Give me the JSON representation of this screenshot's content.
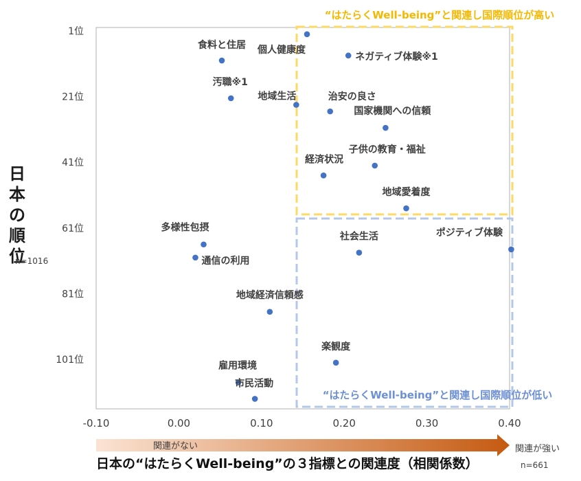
{
  "chart_data": {
    "type": "scatter",
    "x_axis": {
      "min": -0.1,
      "max": 0.4,
      "ticks": [
        "-0.10",
        "0.00",
        "0.10",
        "0.20",
        "0.30",
        "0.40"
      ],
      "title": "日本の“はたらくWell-being”の３指標との関連度（相関係数）",
      "low_label": "関連がない",
      "high_label": "関連が強い",
      "n_label": "n=661"
    },
    "y_axis": {
      "min": 1,
      "max": 115,
      "reversed": true,
      "ticks": [
        "1位",
        "21位",
        "41位",
        "61位",
        "81位",
        "101位"
      ],
      "title": "日本の順位",
      "n_label": "n=1016"
    },
    "points": [
      {
        "label": "食料と住居",
        "x": 0.052,
        "y": 10
      },
      {
        "label": "個人健康度",
        "x": 0.155,
        "y": 2
      },
      {
        "label": "ネガティブ体験※1",
        "x": 0.205,
        "y": 8.5
      },
      {
        "label": "汚職※1",
        "x": 0.063,
        "y": 21.5
      },
      {
        "label": "地域生活",
        "x": 0.142,
        "y": 23.5
      },
      {
        "label": "治安の良さ",
        "x": 0.183,
        "y": 25.5
      },
      {
        "label": "国家機関への信頼",
        "x": 0.25,
        "y": 30.5
      },
      {
        "label": "子供の教育・福祉",
        "x": 0.237,
        "y": 42
      },
      {
        "label": "経済状況",
        "x": 0.175,
        "y": 45
      },
      {
        "label": "地域愛着度",
        "x": 0.275,
        "y": 55
      },
      {
        "label": "多様性包摂",
        "x": 0.03,
        "y": 66
      },
      {
        "label": "通信の利用",
        "x": 0.02,
        "y": 70
      },
      {
        "label": "社会生活",
        "x": 0.218,
        "y": 68.5
      },
      {
        "label": "ポジティブ体験",
        "x": 0.402,
        "y": 67.5
      },
      {
        "label": "地域経済信頼感",
        "x": 0.11,
        "y": 86.5
      },
      {
        "label": "楽観度",
        "x": 0.19,
        "y": 102
      },
      {
        "label": "雇用環境",
        "x": 0.072,
        "y": 108
      },
      {
        "label": "市民活動",
        "x": 0.092,
        "y": 113
      }
    ],
    "regions": [
      {
        "label": "“はたらくWell-being”と関連し国際順位が高い",
        "color": "#ffd966"
      },
      {
        "label": "“はたらくWell-being”と関連し国際順位が低い",
        "color": "#b4c7e7"
      }
    ],
    "colors": {
      "point": "#4472c4",
      "region_high_text": "#f5b800",
      "region_low_text": "#6d8fd4",
      "arrow_light": "#fbe3d3",
      "arrow_dark": "#c55a11"
    }
  }
}
